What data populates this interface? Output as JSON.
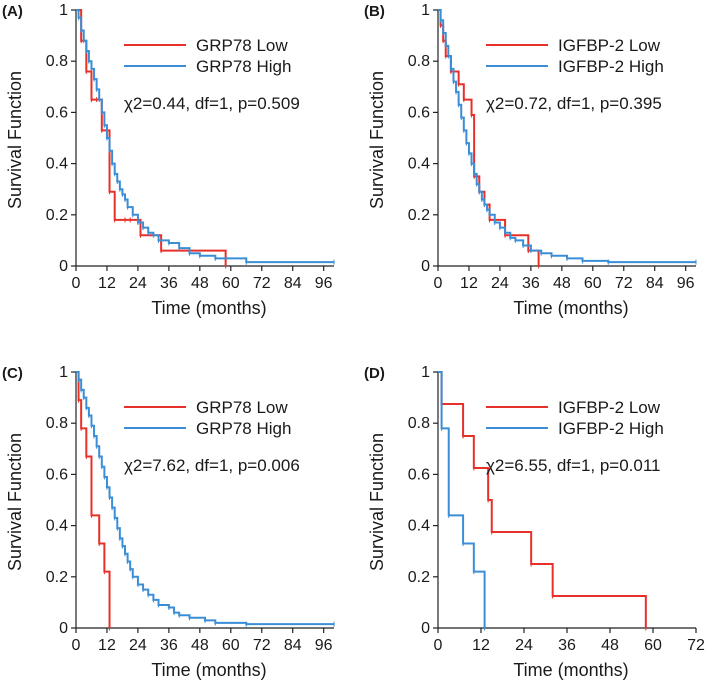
{
  "colors": {
    "low": "#e8302a",
    "high": "#3b8ed6",
    "axis": "#222222"
  },
  "chart_data": [
    {
      "type": "line",
      "panel_label": "(A)",
      "title": "",
      "xlabel": "Time (months)",
      "ylabel": "Survival Function",
      "xlim": [
        0,
        100
      ],
      "ylim": [
        0,
        1
      ],
      "xticks": [
        0,
        12,
        24,
        36,
        48,
        60,
        72,
        84,
        96
      ],
      "yticks": [
        0,
        0.2,
        0.4,
        0.6,
        0.8,
        1
      ],
      "ytick_labels": [
        "0",
        "0.2",
        "0.4",
        "0.6",
        "0.8",
        "1"
      ],
      "legend": [
        "GRP78 Low",
        "GRP78 High"
      ],
      "legend_position": "top-right",
      "stat": "χ2=0.44, df=1, p=0.509",
      "series": [
        {
          "name": "GRP78 Low",
          "color": "low",
          "x": [
            0,
            2,
            4,
            6,
            8,
            10,
            13,
            15,
            19,
            21,
            25,
            33,
            58
          ],
          "y": [
            1,
            0.88,
            0.76,
            0.65,
            0.65,
            0.53,
            0.29,
            0.18,
            0.18,
            0.18,
            0.12,
            0.06,
            0
          ]
        },
        {
          "name": "GRP78 High",
          "color": "high",
          "x": [
            0,
            1,
            2,
            3,
            4,
            5,
            6,
            7,
            8,
            9,
            10,
            11,
            12,
            13,
            14,
            15,
            16,
            17,
            18,
            19,
            20,
            22,
            24,
            26,
            28,
            30,
            32,
            36,
            40,
            44,
            48,
            54,
            66,
            100
          ],
          "y": [
            1,
            0.97,
            0.92,
            0.88,
            0.84,
            0.8,
            0.77,
            0.73,
            0.69,
            0.65,
            0.6,
            0.55,
            0.5,
            0.45,
            0.4,
            0.36,
            0.33,
            0.3,
            0.28,
            0.26,
            0.23,
            0.2,
            0.17,
            0.15,
            0.13,
            0.12,
            0.1,
            0.09,
            0.07,
            0.05,
            0.04,
            0.03,
            0.015,
            0.015
          ]
        }
      ]
    },
    {
      "type": "line",
      "panel_label": "(B)",
      "title": "",
      "xlabel": "Time (months)",
      "ylabel": "Survival Function",
      "xlim": [
        0,
        100
      ],
      "ylim": [
        0,
        1
      ],
      "xticks": [
        0,
        12,
        24,
        36,
        48,
        60,
        72,
        84,
        96
      ],
      "yticks": [
        0,
        0.2,
        0.4,
        0.6,
        0.8,
        1
      ],
      "ytick_labels": [
        "0",
        "0.2",
        "0.4",
        "0.6",
        "0.8",
        "1"
      ],
      "legend": [
        "IGFBP-2 Low",
        "IGFBP-2 High"
      ],
      "legend_position": "top-right",
      "stat": "χ2=0.72, df=1, p=0.395",
      "series": [
        {
          "name": "IGFBP-2 Low",
          "color": "low",
          "x": [
            0,
            1,
            2,
            3,
            5,
            8,
            10,
            13,
            14,
            16,
            18,
            20,
            26,
            35,
            39
          ],
          "y": [
            1,
            0.94,
            0.88,
            0.82,
            0.76,
            0.71,
            0.65,
            0.59,
            0.35,
            0.29,
            0.24,
            0.18,
            0.12,
            0.06,
            0
          ]
        },
        {
          "name": "IGFBP-2 High",
          "color": "high",
          "x": [
            0,
            1,
            2,
            3,
            4,
            5,
            6,
            7,
            8,
            9,
            10,
            11,
            12,
            13,
            14,
            15,
            16,
            17,
            18,
            19,
            20,
            22,
            24,
            26,
            28,
            30,
            33,
            36,
            40,
            44,
            50,
            56,
            66,
            100
          ],
          "y": [
            1,
            0.96,
            0.91,
            0.86,
            0.82,
            0.77,
            0.72,
            0.68,
            0.63,
            0.58,
            0.53,
            0.48,
            0.44,
            0.4,
            0.36,
            0.32,
            0.29,
            0.26,
            0.24,
            0.22,
            0.2,
            0.17,
            0.15,
            0.13,
            0.11,
            0.1,
            0.08,
            0.06,
            0.05,
            0.04,
            0.03,
            0.02,
            0.015,
            0.015
          ]
        }
      ]
    },
    {
      "type": "line",
      "panel_label": "(C)",
      "title": "",
      "xlabel": "Time (months)",
      "ylabel": "Survival Function",
      "xlim": [
        0,
        100
      ],
      "ylim": [
        0,
        1
      ],
      "xticks": [
        0,
        12,
        24,
        36,
        48,
        60,
        72,
        84,
        96
      ],
      "yticks": [
        0,
        0.2,
        0.4,
        0.6,
        0.8,
        1
      ],
      "ytick_labels": [
        "0",
        "0.2",
        "0.4",
        "0.6",
        "0.8",
        "1"
      ],
      "legend": [
        "GRP78 Low",
        "GRP78 High"
      ],
      "legend_position": "top-right",
      "stat": "χ2=7.62, df=1, p=0.006",
      "series": [
        {
          "name": "GRP78 Low",
          "color": "low",
          "x": [
            0,
            1,
            2,
            4,
            6,
            9,
            11,
            13
          ],
          "y": [
            1,
            0.89,
            0.78,
            0.67,
            0.44,
            0.33,
            0.22,
            0
          ]
        },
        {
          "name": "GRP78 High",
          "color": "high",
          "x": [
            0,
            1,
            2,
            3,
            4,
            5,
            6,
            7,
            8,
            9,
            10,
            11,
            12,
            13,
            14,
            15,
            16,
            17,
            18,
            19,
            20,
            21,
            22,
            24,
            26,
            28,
            30,
            32,
            36,
            38,
            40,
            44,
            50,
            54,
            66,
            100
          ],
          "y": [
            1,
            0.97,
            0.93,
            0.9,
            0.86,
            0.83,
            0.79,
            0.75,
            0.71,
            0.67,
            0.63,
            0.59,
            0.55,
            0.51,
            0.47,
            0.43,
            0.39,
            0.35,
            0.32,
            0.29,
            0.26,
            0.23,
            0.2,
            0.17,
            0.15,
            0.13,
            0.11,
            0.09,
            0.08,
            0.06,
            0.05,
            0.04,
            0.03,
            0.02,
            0.015,
            0.015
          ]
        }
      ]
    },
    {
      "type": "line",
      "panel_label": "(D)",
      "title": "",
      "xlabel": "Time (months)",
      "ylabel": "Survival Function",
      "xlim": [
        0,
        72
      ],
      "ylim": [
        0,
        1
      ],
      "xticks": [
        0,
        12,
        24,
        36,
        48,
        60,
        72
      ],
      "yticks": [
        0,
        0.2,
        0.4,
        0.6,
        0.8,
        1
      ],
      "ytick_labels": [
        "0",
        "0.2",
        "0.4",
        "0.6",
        "0.8",
        "1"
      ],
      "legend": [
        "IGFBP-2  Low",
        "IGFBP-2 High"
      ],
      "legend_position": "top-right",
      "stat": "χ2=6.55, df=1, p=0.011",
      "series": [
        {
          "name": "IGFBP-2  Low",
          "color": "low",
          "x": [
            0,
            1,
            7,
            10,
            14,
            15,
            26,
            32,
            58
          ],
          "y": [
            1,
            0.875,
            0.75,
            0.625,
            0.5,
            0.375,
            0.25,
            0.125,
            0
          ]
        },
        {
          "name": "IGFBP-2 High",
          "color": "high",
          "x": [
            0,
            1,
            3,
            7,
            10,
            13
          ],
          "y": [
            1,
            0.78,
            0.44,
            0.33,
            0.22,
            0
          ]
        }
      ]
    }
  ]
}
